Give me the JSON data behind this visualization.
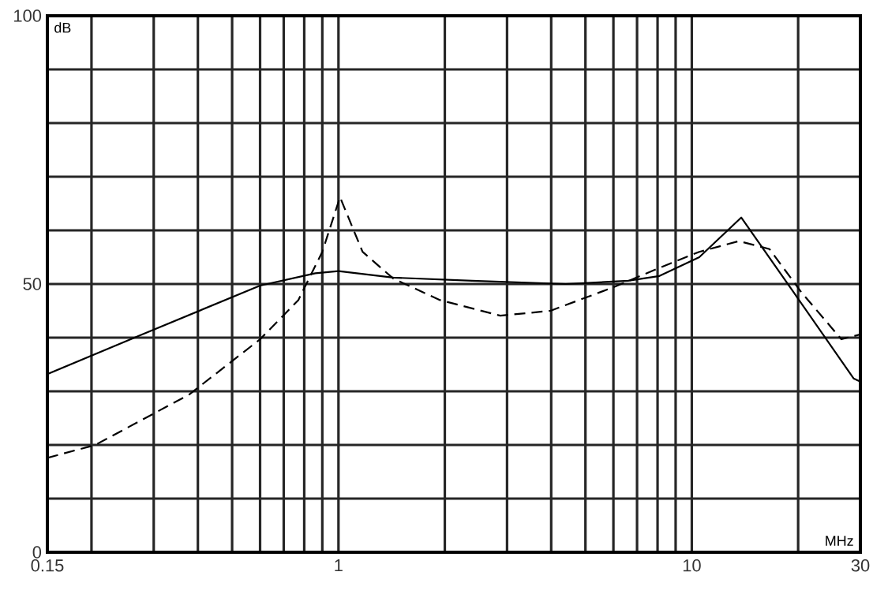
{
  "chart_data": {
    "type": "line",
    "xlabel": "MHz",
    "ylabel": "dB",
    "log": "x",
    "grid": true,
    "xlim": [
      0.15,
      30
    ],
    "ylim": [
      0,
      100
    ],
    "xticks": [
      0.15,
      {
        "value": 0.2,
        "label": null
      },
      {
        "value": 0.3,
        "label": null
      },
      {
        "value": 0.4,
        "label": null
      },
      {
        "value": 0.5,
        "label": null
      },
      {
        "value": 0.6,
        "label": null
      },
      {
        "value": 0.7,
        "label": null
      },
      {
        "value": 0.8,
        "label": null
      },
      {
        "value": 0.9,
        "label": null
      },
      1,
      {
        "value": 2,
        "label": null
      },
      {
        "value": 3,
        "label": null
      },
      {
        "value": 4,
        "label": null
      },
      {
        "value": 5,
        "label": null
      },
      {
        "value": 6,
        "label": null
      },
      {
        "value": 7,
        "label": null
      },
      {
        "value": 8,
        "label": null
      },
      {
        "value": 9,
        "label": null
      },
      10,
      {
        "value": 20,
        "label": null
      },
      30
    ],
    "yticks": [
      0,
      {
        "value": 10,
        "label": null
      },
      {
        "value": 20,
        "label": null
      },
      {
        "value": 30,
        "label": null
      },
      {
        "value": 40,
        "label": null
      },
      50,
      {
        "value": 60,
        "label": null
      },
      {
        "value": 70,
        "label": null
      },
      {
        "value": 80,
        "label": null
      },
      {
        "value": 90,
        "label": null
      },
      100
    ],
    "series": [
      {
        "color": "#000000",
        "line_style": "solid",
        "x": [
          0.15,
          0.278,
          0.6,
          0.86,
          1,
          1.43,
          2.39,
          4.4,
          6.6,
          8.1,
          10.5,
          13.8,
          19.4,
          28.7,
          30
        ],
        "values": [
          33.2,
          40.6,
          49.7,
          52,
          52.4,
          51.2,
          50.6,
          50,
          50.6,
          51.5,
          55,
          62.4,
          48.5,
          32.4,
          31.8
        ]
      },
      {
        "color": "#000000",
        "line_style": "dashed",
        "x": [
          0.15,
          0.205,
          0.378,
          0.6,
          0.77,
          0.9,
          1.01,
          1.17,
          1.43,
          1.94,
          2.87,
          3.98,
          6,
          8.1,
          10.5,
          13.6,
          16.6,
          20.4,
          26.5,
          30
        ],
        "values": [
          17.6,
          20,
          29.4,
          39.7,
          47,
          56,
          66.2,
          56,
          51,
          47,
          44.1,
          45,
          49.4,
          53,
          56,
          58,
          56.5,
          48.5,
          39.7,
          40.6
        ]
      }
    ]
  }
}
